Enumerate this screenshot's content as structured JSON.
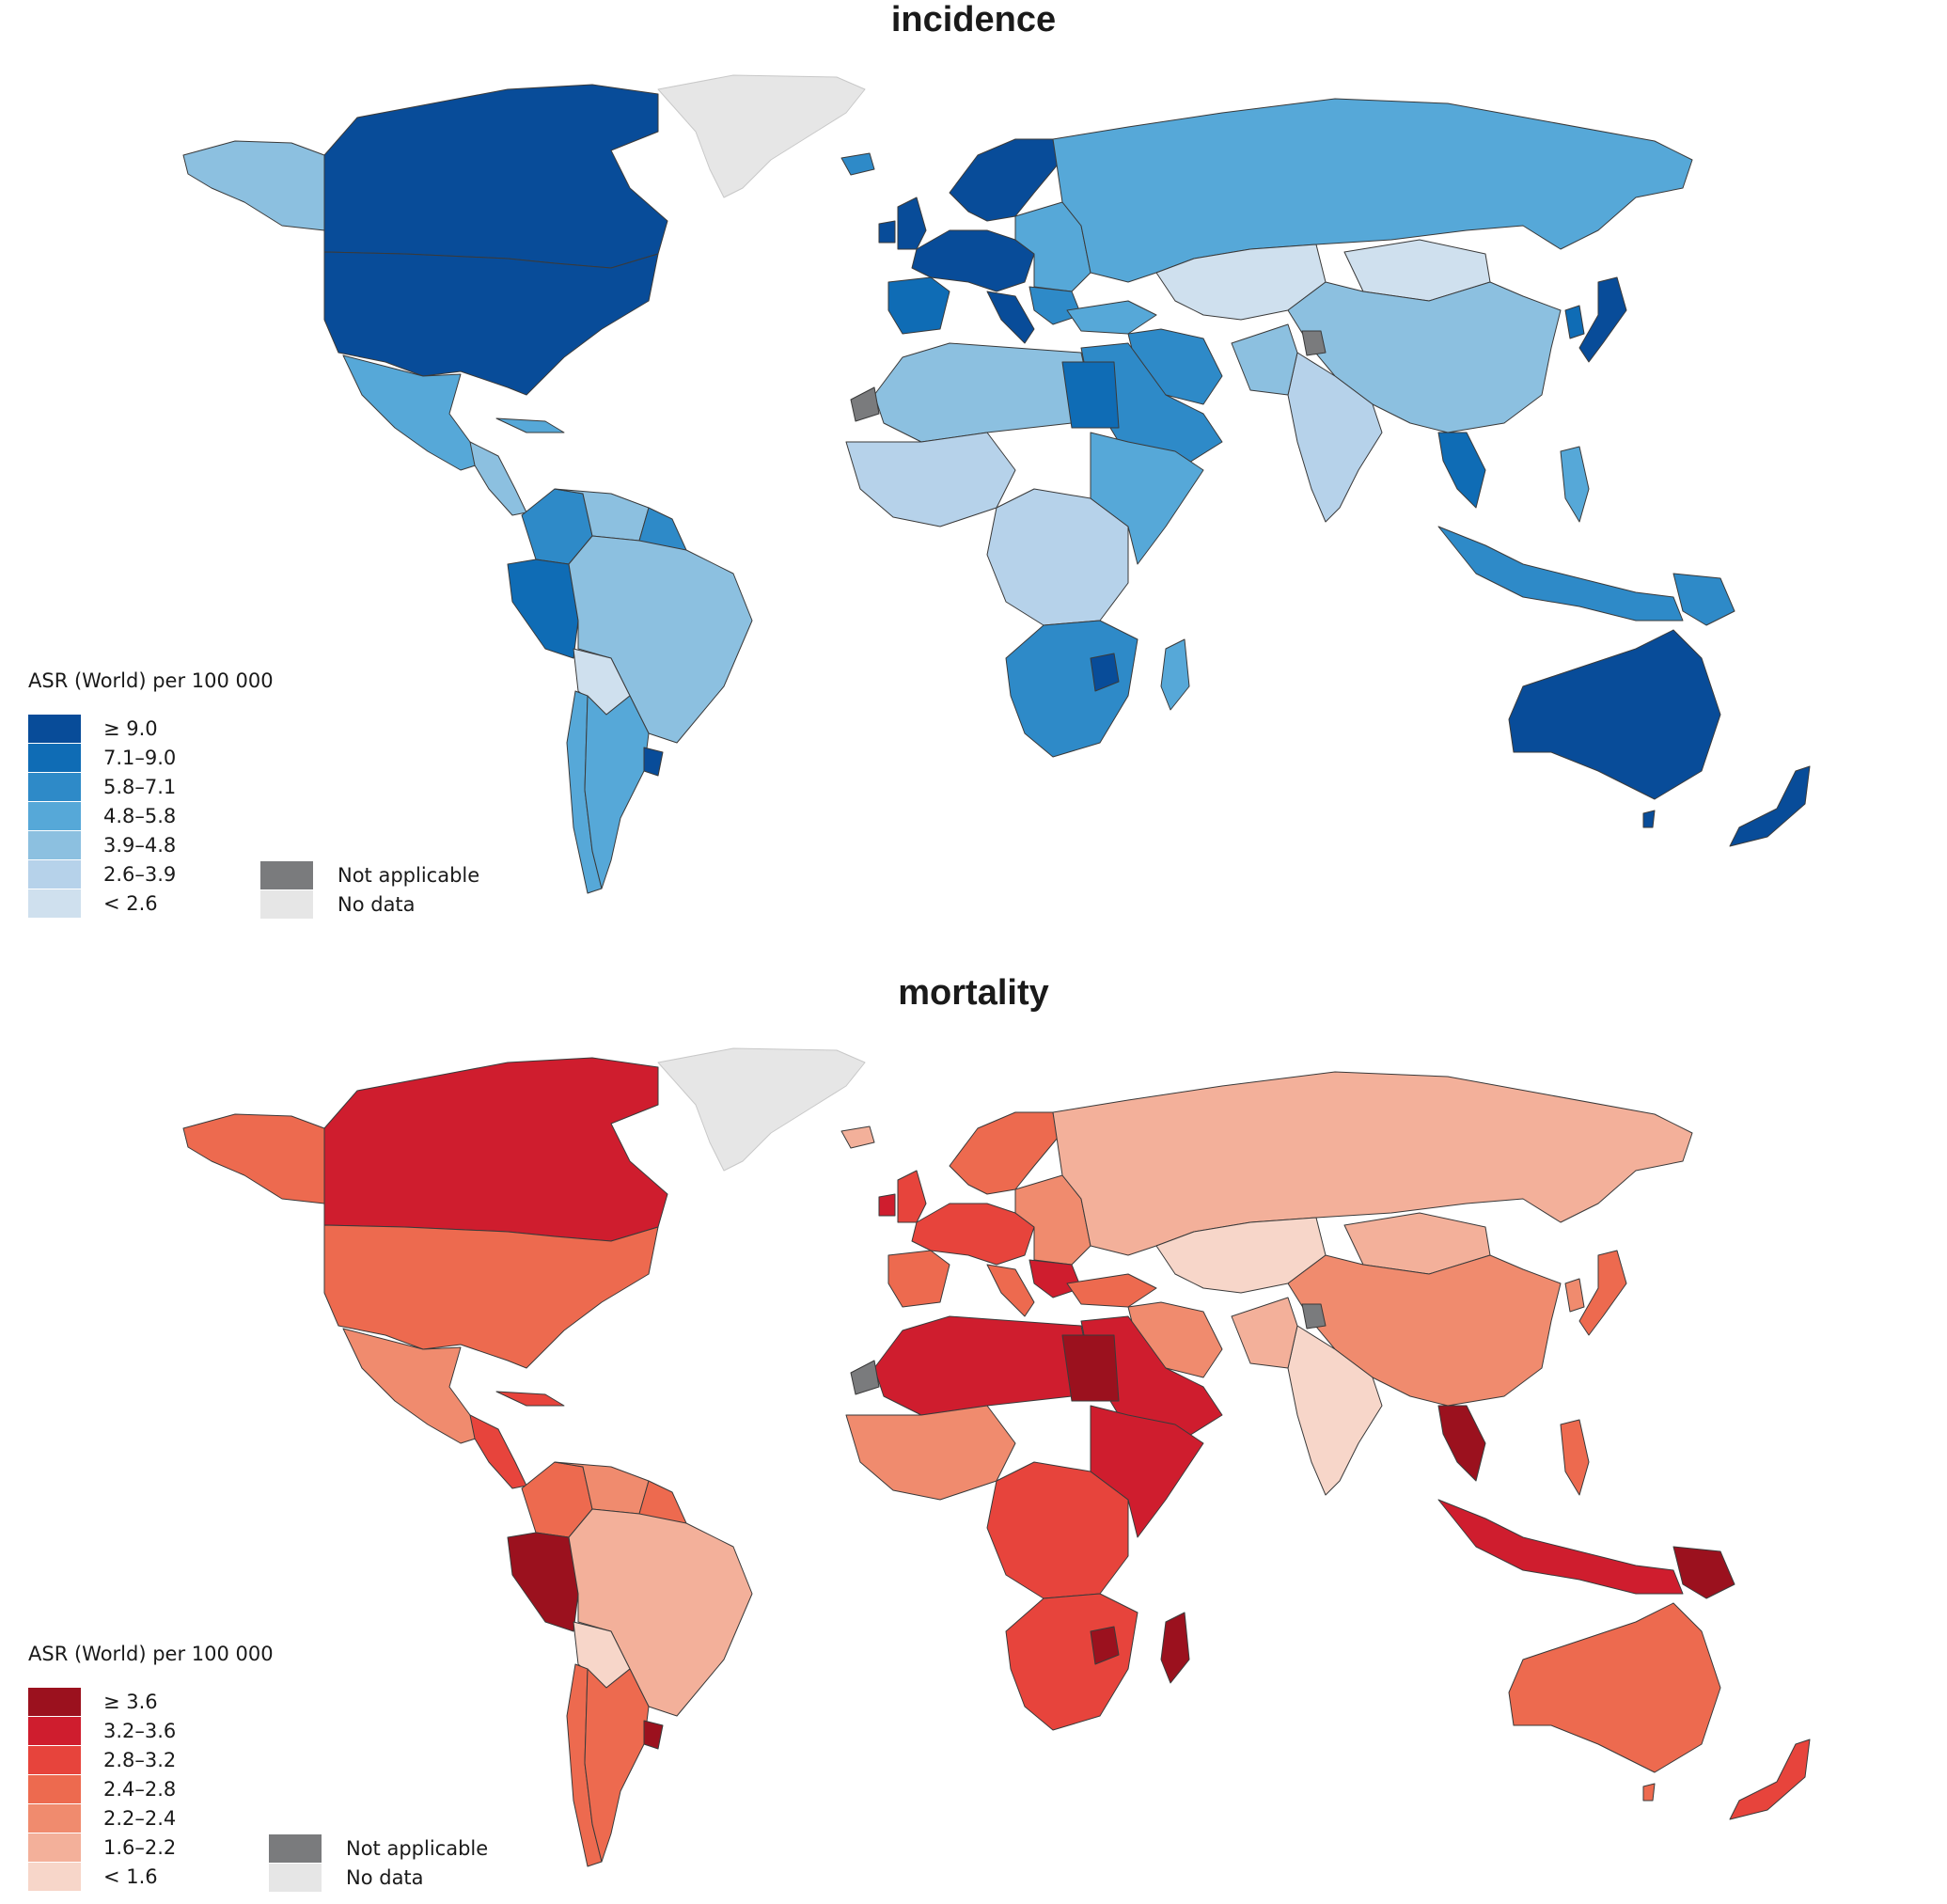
{
  "maps": [
    {
      "id": "incidence",
      "title": "incidence",
      "legend_title": "ASR (World) per 100 000",
      "legend": [
        {
          "label": "≥ 9.0",
          "color": "#084c99"
        },
        {
          "label": "7.1–9.0",
          "color": "#0f6cb5"
        },
        {
          "label": "5.8–7.1",
          "color": "#2e8ac8"
        },
        {
          "label": "4.8–5.8",
          "color": "#56a8d8"
        },
        {
          "label": "3.9–4.8",
          "color": "#8cc0e0"
        },
        {
          "label": "2.6–3.9",
          "color": "#b6d2ea"
        },
        {
          "label": "< 2.6",
          "color": "#cfe0ee"
        }
      ],
      "extra_legend": [
        {
          "label": "Not applicable",
          "color": "#7a7b7d"
        },
        {
          "label": "No data",
          "color": "#e6e6e6"
        }
      ]
    },
    {
      "id": "mortality",
      "title": "mortality",
      "legend_title": "ASR (World) per 100 000",
      "legend": [
        {
          "label": "≥ 3.6",
          "color": "#9b111e"
        },
        {
          "label": "3.2–3.6",
          "color": "#cf1d2e"
        },
        {
          "label": "2.8–3.2",
          "color": "#e7443c"
        },
        {
          "label": "2.4–2.8",
          "color": "#ed6a4f"
        },
        {
          "label": "2.2–2.4",
          "color": "#f08b6e"
        },
        {
          "label": "1.6–2.2",
          "color": "#f3b09a"
        },
        {
          "label": "< 1.6",
          "color": "#f7d6c9"
        }
      ],
      "extra_legend": [
        {
          "label": "Not applicable",
          "color": "#7a7b7d"
        },
        {
          "label": "No data",
          "color": "#e6e6e6"
        }
      ]
    }
  ]
}
